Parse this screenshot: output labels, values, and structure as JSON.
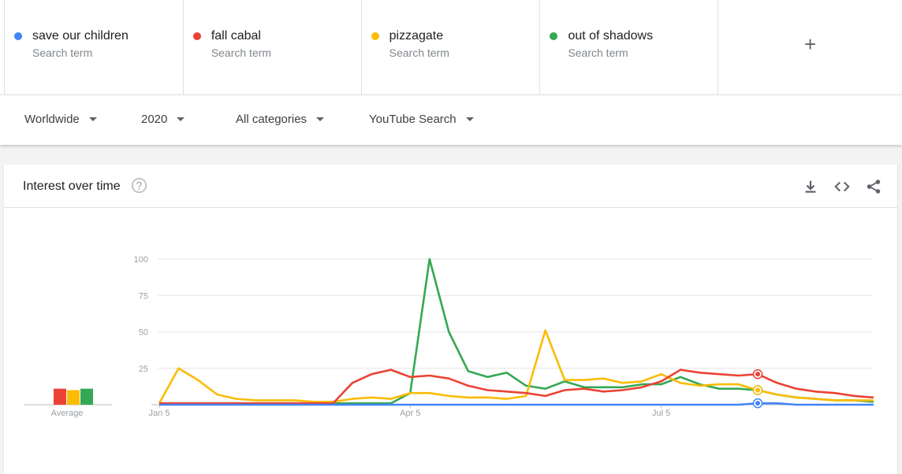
{
  "terms": [
    {
      "name": "save our children",
      "sub": "Search term",
      "color": "#4285f4"
    },
    {
      "name": "fall cabal",
      "sub": "Search term",
      "color": "#ea4335"
    },
    {
      "name": "pizzagate",
      "sub": "Search term",
      "color": "#fbbc04"
    },
    {
      "name": "out of shadows",
      "sub": "Search term",
      "color": "#34a853"
    }
  ],
  "add_term": {
    "symbol": "+"
  },
  "filters": {
    "region": "Worldwide",
    "time": "2020",
    "category": "All categories",
    "property": "YouTube Search"
  },
  "card": {
    "title": "Interest over time",
    "icons": [
      "help-icon",
      "download-icon",
      "embed-icon",
      "share-icon"
    ]
  },
  "average": {
    "label": "Average",
    "values": [
      {
        "term": "fall cabal",
        "value": 11,
        "color": "#ea4335"
      },
      {
        "term": "pizzagate",
        "value": 10,
        "color": "#fbbc04"
      },
      {
        "term": "out of shadows",
        "value": 11,
        "color": "#34a853"
      }
    ]
  },
  "chart_data": {
    "type": "line",
    "title": "",
    "xlabel": "",
    "ylabel": "",
    "ylim": [
      0,
      100
    ],
    "yticks": [
      25,
      50,
      75,
      100
    ],
    "xtick_labels": [
      {
        "label": "Jan 5",
        "index": 0
      },
      {
        "label": "Apr 5",
        "index": 13
      },
      {
        "label": "Jul 5",
        "index": 26
      }
    ],
    "x_count": 38,
    "grid": true,
    "series": [
      {
        "name": "out of shadows",
        "color": "#34a853",
        "values": [
          1,
          1,
          1,
          1,
          1,
          1,
          1,
          1,
          1,
          1,
          1,
          1,
          1,
          8,
          100,
          50,
          23,
          19,
          22,
          13,
          11,
          16,
          12,
          12,
          12,
          14,
          14,
          19,
          14,
          11,
          11,
          10,
          7,
          5,
          4,
          3,
          3,
          2
        ]
      },
      {
        "name": "pizzagate",
        "color": "#fbbc04",
        "values": [
          1,
          25,
          17,
          7,
          4,
          3,
          3,
          3,
          2,
          2,
          4,
          5,
          4,
          8,
          8,
          6,
          5,
          5,
          4,
          6,
          51,
          17,
          17,
          18,
          15,
          16,
          21,
          15,
          13,
          14,
          14,
          10,
          7,
          5,
          4,
          3,
          3,
          3
        ]
      },
      {
        "name": "fall cabal",
        "color": "#ea4335",
        "values": [
          1,
          1,
          1,
          1,
          1,
          1,
          1,
          1,
          1,
          1,
          15,
          21,
          24,
          19,
          20,
          18,
          13,
          10,
          9,
          8,
          6,
          10,
          11,
          9,
          10,
          12,
          16,
          24,
          22,
          21,
          20,
          21,
          15,
          11,
          9,
          8,
          6,
          5
        ]
      },
      {
        "name": "save our children",
        "color": "#4285f4",
        "values": [
          0,
          0,
          0,
          0,
          0,
          0,
          0,
          0,
          0,
          0,
          0,
          0,
          0,
          0,
          0,
          0,
          0,
          0,
          0,
          0,
          0,
          0,
          0,
          0,
          0,
          0,
          0,
          0,
          0,
          0,
          0,
          1,
          1,
          0,
          0,
          0,
          0,
          0
        ]
      }
    ],
    "marker_index": 31
  }
}
